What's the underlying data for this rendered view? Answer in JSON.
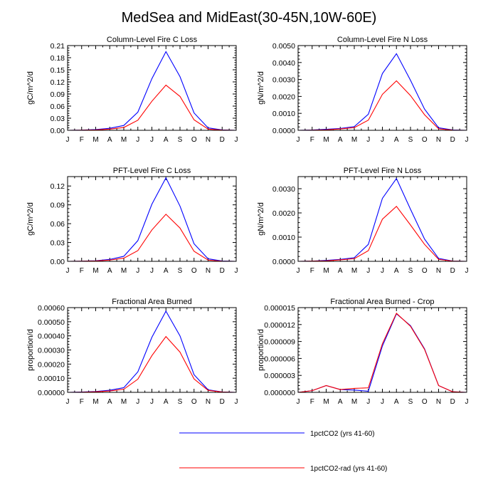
{
  "title": "MedSea and MidEast(30-45N,10W-60E)",
  "series_names": [
    "1pctCO2 (yrs 41-60)",
    "1pctCO2-rad (yrs 41-60)"
  ],
  "series_colors": [
    "#0000ff",
    "#ff0000"
  ],
  "chart_data": [
    {
      "type": "line",
      "title": "Column-Level Fire C Loss",
      "ylabel": "gC/m^2/d",
      "x": [
        "J",
        "F",
        "M",
        "A",
        "M",
        "J",
        "J",
        "A",
        "S",
        "O",
        "N",
        "D",
        "J"
      ],
      "ylim": [
        0,
        0.21
      ],
      "yticks": [
        "0.00",
        "0.03",
        "0.06",
        "0.09",
        "0.12",
        "0.15",
        "0.18",
        "0.21"
      ],
      "series": [
        {
          "name": "1pctCO2 (yrs 41-60)",
          "color": "#0000ff",
          "values": [
            0,
            0.0005,
            0.002,
            0.005,
            0.012,
            0.045,
            0.128,
            0.195,
            0.133,
            0.043,
            0.006,
            0.001,
            0
          ]
        },
        {
          "name": "1pctCO2-rad (yrs 41-60)",
          "color": "#ff0000",
          "values": [
            0,
            0.0003,
            0.001,
            0.003,
            0.007,
            0.025,
            0.072,
            0.112,
            0.084,
            0.026,
            0.003,
            0.0005,
            0
          ]
        }
      ]
    },
    {
      "type": "line",
      "title": "Column-Level Fire N Loss",
      "ylabel": "gN/m^2/d",
      "x": [
        "J",
        "F",
        "M",
        "A",
        "M",
        "J",
        "J",
        "A",
        "S",
        "O",
        "N",
        "D",
        "J"
      ],
      "ylim": [
        0,
        0.005
      ],
      "yticks": [
        "0.0000",
        "0.0010",
        "0.0020",
        "0.0030",
        "0.0040",
        "0.0050"
      ],
      "series": [
        {
          "name": "1pctCO2 (yrs 41-60)",
          "color": "#0000ff",
          "values": [
            0,
            2e-05,
            6e-05,
            0.00011,
            0.00022,
            0.00095,
            0.00335,
            0.00452,
            0.00295,
            0.00125,
            0.00015,
            2e-05,
            0
          ]
        },
        {
          "name": "1pctCO2-rad (yrs 41-60)",
          "color": "#ff0000",
          "values": [
            0,
            1e-05,
            3e-05,
            8e-05,
            0.00016,
            0.0006,
            0.00212,
            0.00292,
            0.00205,
            0.00092,
            9e-05,
            1e-05,
            0
          ]
        }
      ]
    },
    {
      "type": "line",
      "title": "PFT-Level Fire C Loss",
      "ylabel": "gC/m^2/d",
      "x": [
        "J",
        "F",
        "M",
        "A",
        "M",
        "J",
        "J",
        "A",
        "S",
        "O",
        "N",
        "D",
        "J"
      ],
      "ylim": [
        0,
        0.135
      ],
      "yticks": [
        "0.00",
        "0.03",
        "0.06",
        "0.09",
        "0.12"
      ],
      "series": [
        {
          "name": "1pctCO2 (yrs 41-60)",
          "color": "#0000ff",
          "values": [
            0,
            0.0003,
            0.001,
            0.003,
            0.008,
            0.033,
            0.091,
            0.133,
            0.088,
            0.028,
            0.004,
            0.0005,
            0
          ]
        },
        {
          "name": "1pctCO2-rad (yrs 41-60)",
          "color": "#ff0000",
          "values": [
            0,
            0.0002,
            0.0006,
            0.002,
            0.005,
            0.017,
            0.05,
            0.075,
            0.053,
            0.016,
            0.002,
            0.0003,
            0
          ]
        }
      ]
    },
    {
      "type": "line",
      "title": "PFT-Level Fire N Loss",
      "ylabel": "gN/m^2/d",
      "x": [
        "J",
        "F",
        "M",
        "A",
        "M",
        "J",
        "J",
        "A",
        "S",
        "O",
        "N",
        "D",
        "J"
      ],
      "ylim": [
        0,
        0.0035
      ],
      "yticks": [
        "0.0000",
        "0.0010",
        "0.0020",
        "0.0030"
      ],
      "series": [
        {
          "name": "1pctCO2 (yrs 41-60)",
          "color": "#0000ff",
          "values": [
            0,
            1e-05,
            4e-05,
            8e-05,
            0.00015,
            0.0007,
            0.0026,
            0.00342,
            0.00215,
            0.00092,
            0.00012,
            1e-05,
            0
          ]
        },
        {
          "name": "1pctCO2-rad (yrs 41-60)",
          "color": "#ff0000",
          "values": [
            0,
            1e-05,
            2e-05,
            6e-05,
            0.00011,
            0.00044,
            0.00174,
            0.00227,
            0.0015,
            0.0007,
            8e-05,
            1e-05,
            0
          ]
        }
      ]
    },
    {
      "type": "line",
      "title": "Fractional Area Burned",
      "ylabel": "proportion/d",
      "x": [
        "J",
        "F",
        "M",
        "A",
        "M",
        "J",
        "J",
        "A",
        "S",
        "O",
        "N",
        "D",
        "J"
      ],
      "ylim": [
        0,
        0.0006
      ],
      "yticks": [
        "0.00000",
        "0.00010",
        "0.00020",
        "0.00030",
        "0.00040",
        "0.00050",
        "0.00060"
      ],
      "series": [
        {
          "name": "1pctCO2 (yrs 41-60)",
          "color": "#0000ff",
          "values": [
            0,
            2e-06,
            6e-06,
            1.5e-05,
            3.3e-05,
            0.000145,
            0.00039,
            0.000575,
            0.0004,
            0.000125,
            1.8e-05,
            3e-06,
            0
          ]
        },
        {
          "name": "1pctCO2-rad (yrs 41-60)",
          "color": "#ff0000",
          "values": [
            0,
            1e-06,
            4e-06,
            1e-05,
            2.2e-05,
            9.3e-05,
            0.00026,
            0.000395,
            0.000285,
            9.5e-05,
            1.4e-05,
            2e-06,
            0
          ]
        }
      ]
    },
    {
      "type": "line",
      "title": "Fractional Area Burned - Crop",
      "ylabel": "proportion/d",
      "x": [
        "J",
        "F",
        "M",
        "A",
        "M",
        "J",
        "J",
        "A",
        "S",
        "O",
        "N",
        "D",
        "J"
      ],
      "ylim": [
        0,
        1.5e-05
      ],
      "yticks": [
        "0.000000",
        "0.000003",
        "0.000006",
        "0.000009",
        "0.000012",
        "0.000015"
      ],
      "series": [
        {
          "name": "1pctCO2 (yrs 41-60)",
          "color": "#0000ff",
          "values": [
            0,
            3e-07,
            1.2e-06,
            5e-07,
            4e-07,
            2e-07,
            8.2e-06,
            1.39e-05,
            1.18e-05,
            7.7e-06,
            1.2e-06,
            1e-07,
            0
          ]
        },
        {
          "name": "1pctCO2-rad (yrs 41-60)",
          "color": "#ff0000",
          "values": [
            0,
            3e-07,
            1.2e-06,
            5e-07,
            7e-07,
            8e-07,
            8.6e-06,
            1.4e-05,
            1.17e-05,
            7.6e-06,
            1.2e-06,
            1e-07,
            0
          ]
        }
      ]
    }
  ]
}
